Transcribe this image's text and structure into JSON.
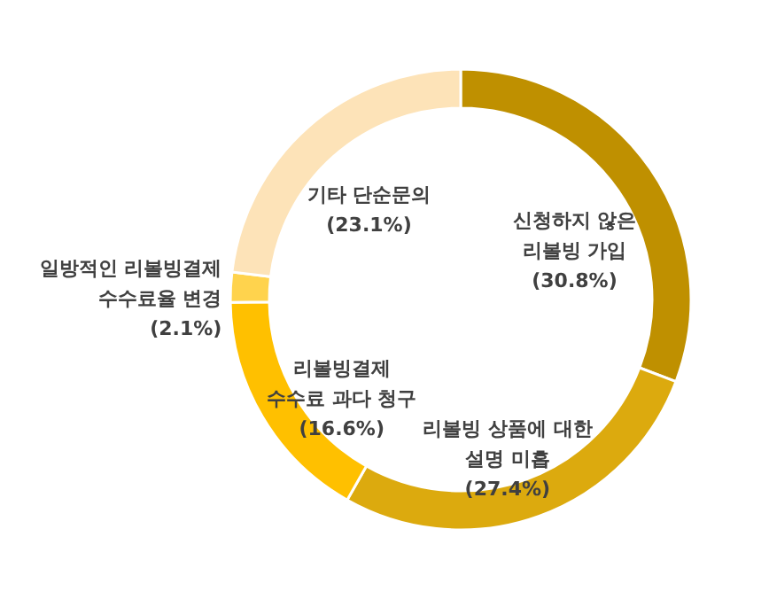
{
  "chart_data": {
    "type": "donut",
    "categories": [
      "신청하지 않은\n리볼빙 가입",
      "리볼빙 상품에 대한\n설명 미흡",
      "리볼빙결제\n수수료 과다 청구",
      "일방적인 리볼빙결제\n수수료율 변경",
      "기타 단순문의"
    ],
    "values": [
      30.8,
      27.4,
      16.6,
      2.1,
      23.1
    ],
    "value_labels": [
      "(30.8%)",
      "(27.4%)",
      "(16.6%)",
      "(2.1%)",
      "(23.1%)"
    ],
    "colors": [
      "#bf9000",
      "#dcaa0e",
      "#ffc000",
      "#ffd34d",
      "#fde3b8"
    ]
  }
}
